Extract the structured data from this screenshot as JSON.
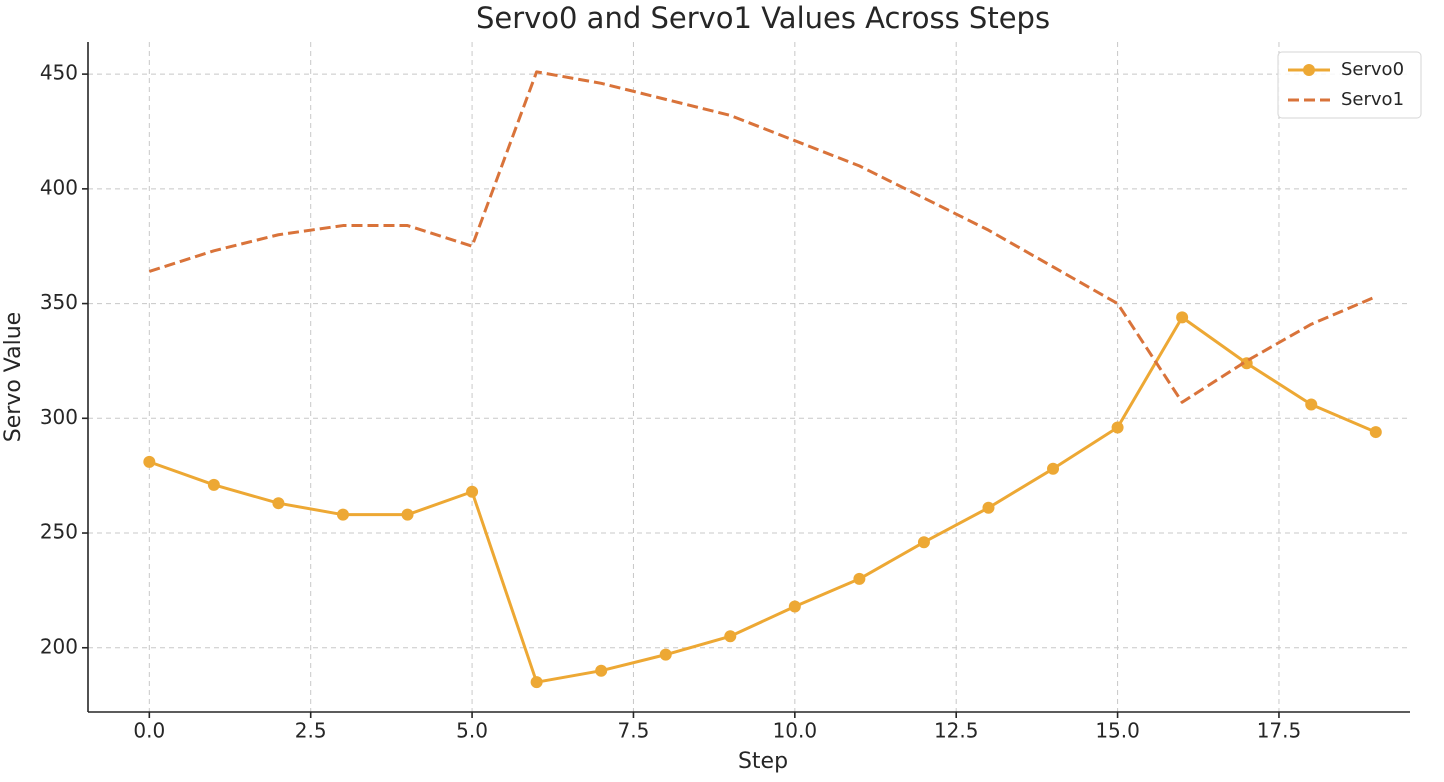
{
  "chart_data": {
    "type": "line",
    "title": "Servo0 and Servo1 Values Across Steps",
    "xlabel": "Step",
    "ylabel": "Servo Value",
    "x": [
      0,
      1,
      2,
      3,
      4,
      5,
      6,
      7,
      8,
      9,
      10,
      11,
      12,
      13,
      14,
      15,
      16,
      17,
      18,
      19
    ],
    "series": [
      {
        "name": "Servo0",
        "color": "#eda834",
        "linestyle": "solid",
        "marker": "circle",
        "values": [
          281,
          271,
          263,
          258,
          258,
          268,
          185,
          190,
          197,
          205,
          218,
          230,
          246,
          261,
          278,
          296,
          344,
          324,
          306,
          294
        ]
      },
      {
        "name": "Servo1",
        "color": "#d9733a",
        "linestyle": "dashed",
        "marker": "none",
        "values": [
          364,
          373,
          380,
          384,
          384,
          375,
          451,
          446,
          439,
          432,
          421,
          410,
          396,
          382,
          366,
          350,
          307,
          325,
          341,
          353
        ]
      }
    ],
    "xlim": [
      -0.95,
      19.53
    ],
    "ylim": [
      172,
      464
    ],
    "xticks": [
      {
        "value": 0,
        "label": "0.0"
      },
      2.5,
      {
        "value": 5,
        "label": "5.0"
      },
      7.5,
      {
        "value": 10,
        "label": "10.0"
      },
      12.5,
      {
        "value": 15,
        "label": "15.0"
      },
      17.5
    ],
    "yticks": [
      200,
      250,
      300,
      350,
      400,
      450
    ],
    "grid": true,
    "legend": "upper right"
  }
}
